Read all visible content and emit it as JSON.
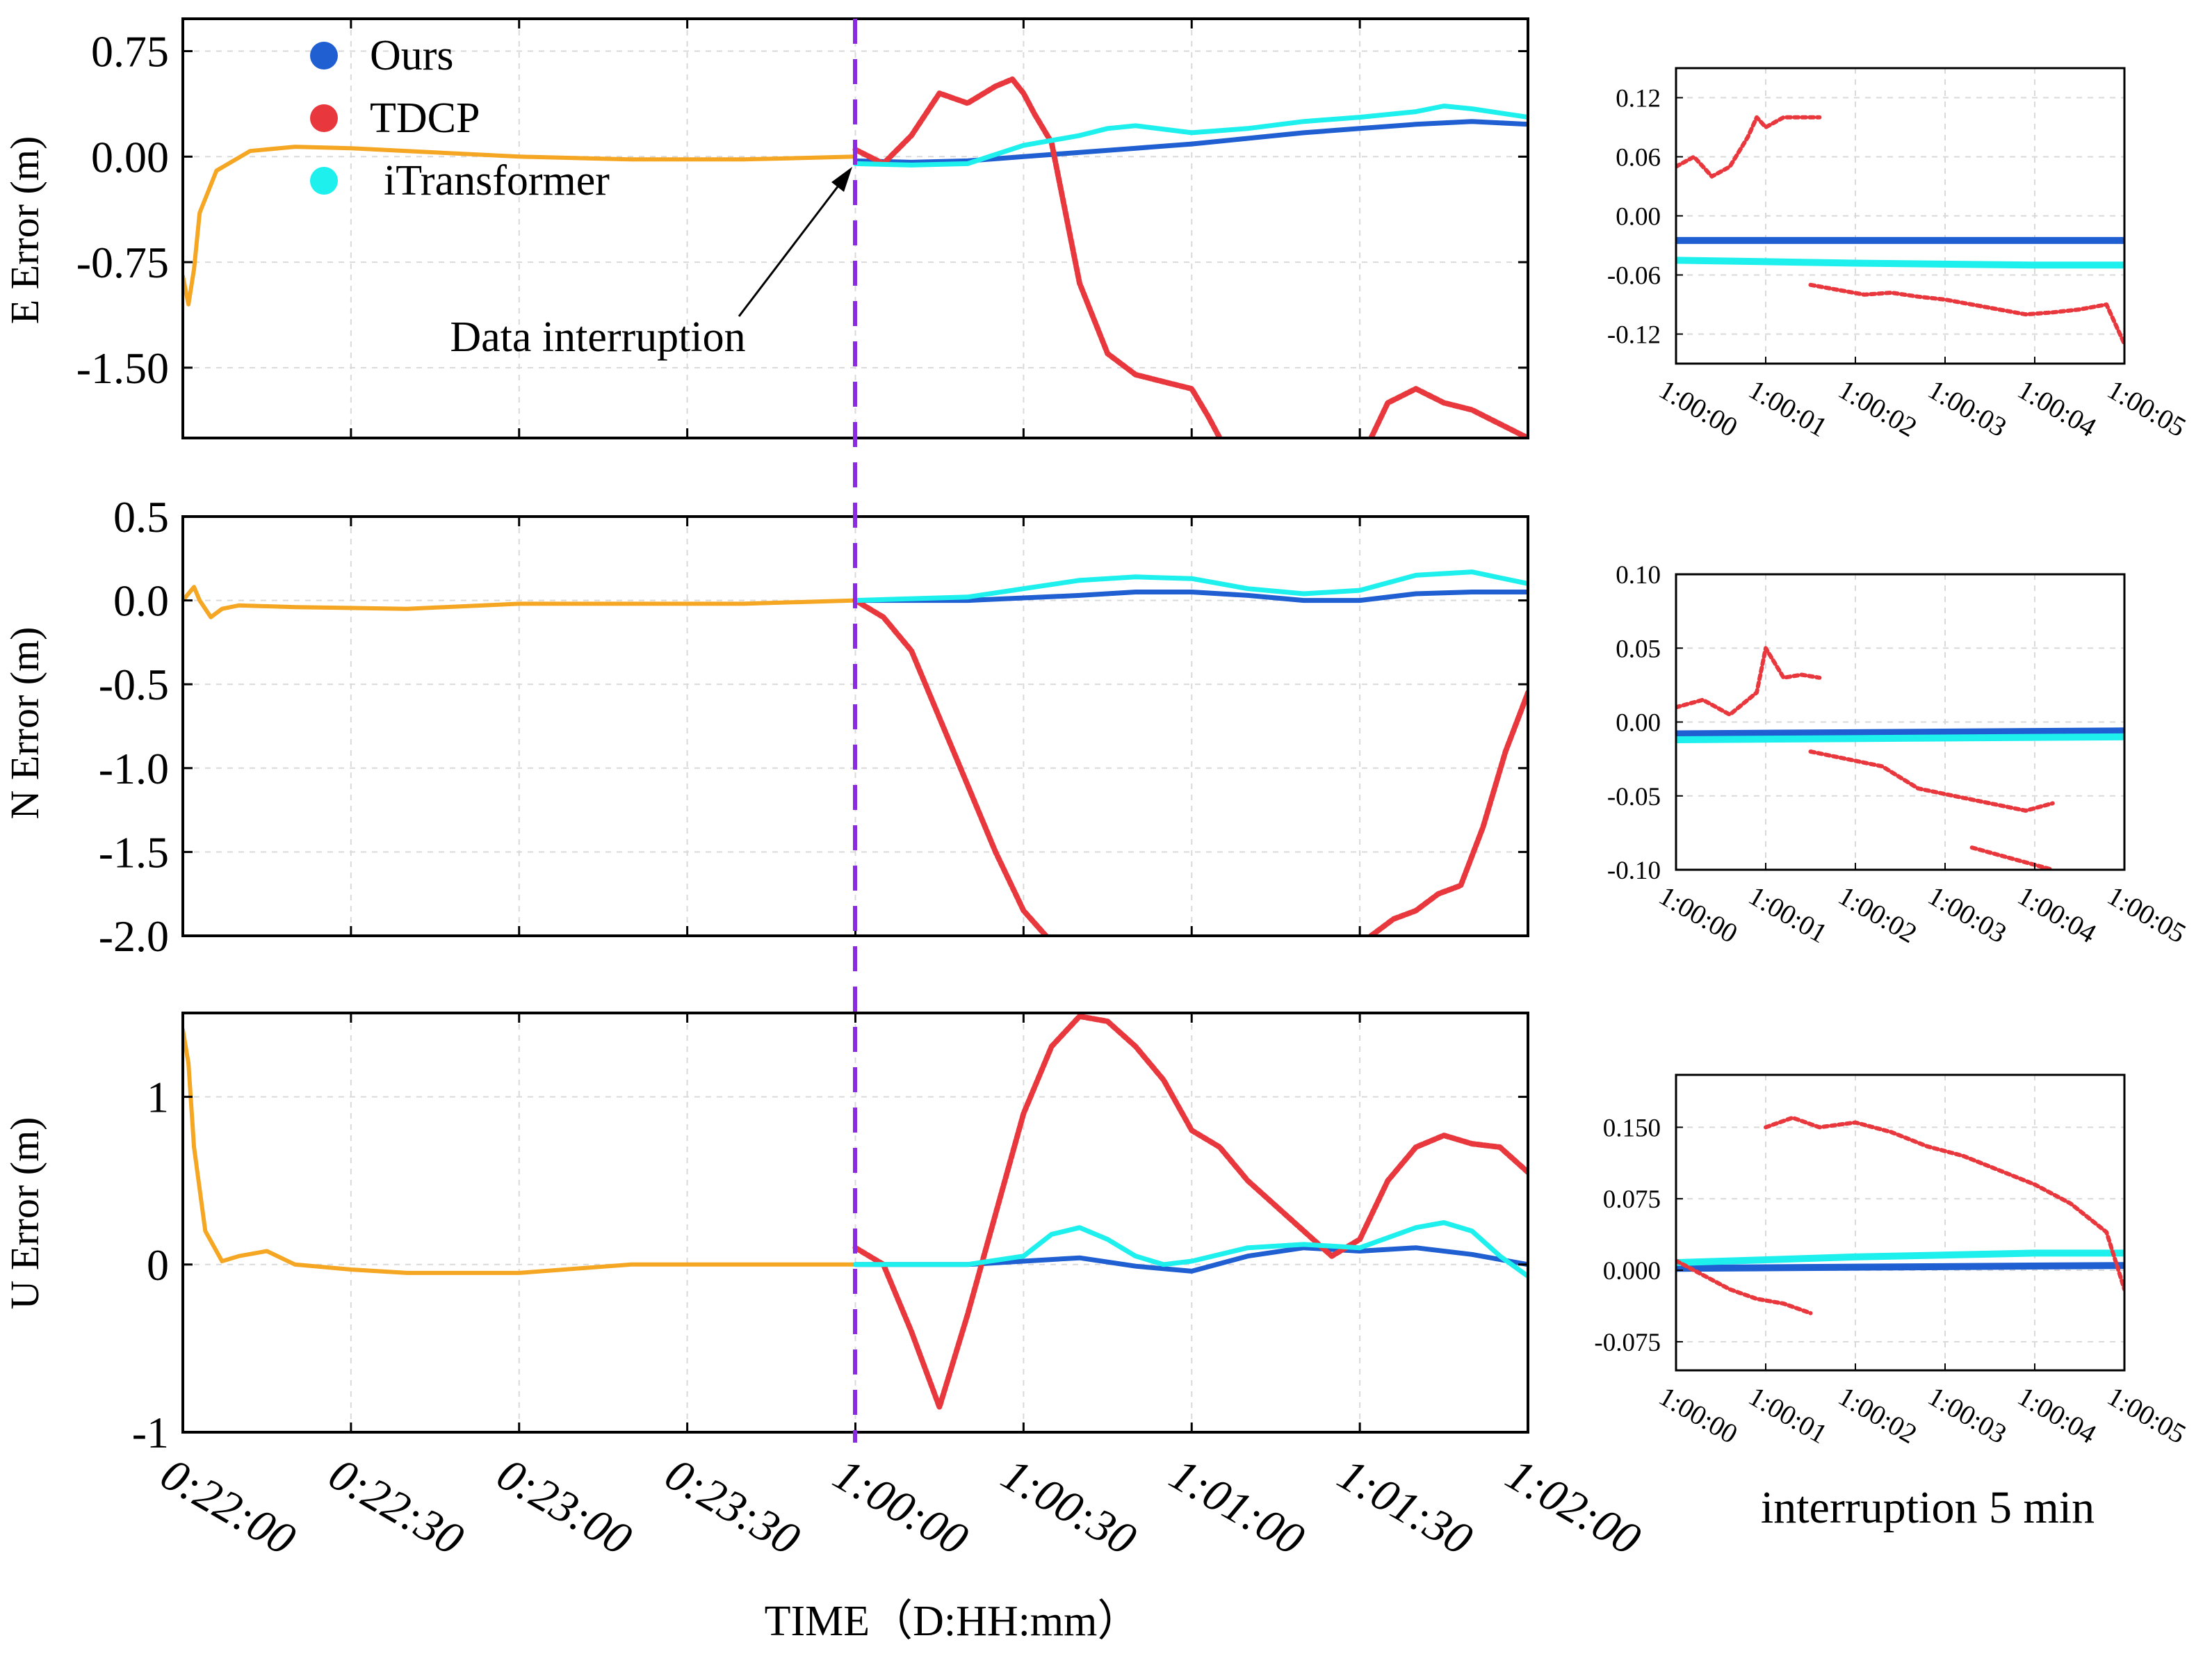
{
  "figure": {
    "xlabel": "TIME（D:HH:mm）",
    "x_ticks": [
      "0:22:00",
      "0:22:30",
      "0:23:00",
      "0:23:30",
      "1:00:00",
      "1:00:30",
      "1:01:00",
      "1:01:30",
      "1:02:00"
    ],
    "interruption_label": "interruption 5 min",
    "annotation": "Data interruption",
    "legend": [
      "Ours",
      "TDCP",
      "iTransformer"
    ],
    "colors": {
      "pre": "#F5A623",
      "Ours": "#1f5fd1",
      "TDCP": "#e8383d",
      "iTransformer": "#1ef0ee",
      "interruption_line": "#8a2be2"
    }
  },
  "chart_data": [
    {
      "type": "line",
      "panel": "main-E",
      "ylabel": "E Error (m)",
      "y_ticks": [
        "0.75",
        "0.00",
        "-0.75",
        "-1.50"
      ],
      "ylim": [
        -2.0,
        0.98
      ],
      "x_unit": "seconds relative to 1:00:00",
      "x_range": [
        -120,
        120
      ],
      "series": [
        {
          "name": "pre",
          "x": [
            -120,
            -119,
            -118,
            -117,
            -114,
            -108,
            -100,
            -90,
            -80,
            -70,
            -60,
            -40,
            -20,
            0
          ],
          "y": [
            -0.85,
            -1.05,
            -0.8,
            -0.4,
            -0.1,
            0.04,
            0.07,
            0.06,
            0.04,
            0.02,
            0.0,
            -0.02,
            -0.02,
            0.0
          ]
        },
        {
          "name": "Ours",
          "x": [
            0,
            10,
            20,
            30,
            40,
            50,
            60,
            70,
            80,
            90,
            100,
            110,
            120
          ],
          "y": [
            -0.03,
            -0.04,
            -0.03,
            0.0,
            0.03,
            0.06,
            0.09,
            0.13,
            0.17,
            0.2,
            0.23,
            0.25,
            0.23
          ]
        },
        {
          "name": "TDCP",
          "x": [
            0,
            5,
            10,
            15,
            20,
            25,
            28,
            30,
            32,
            35,
            40,
            45,
            50,
            55,
            60,
            63,
            65
          ],
          "y": [
            0.05,
            -0.05,
            0.15,
            0.45,
            0.38,
            0.5,
            0.55,
            0.45,
            0.3,
            0.1,
            -0.9,
            -1.4,
            -1.55,
            -1.6,
            -1.65,
            -1.85,
            -2.0
          ]
        },
        {
          "name": "TDCP",
          "x": [
            92,
            95,
            100,
            105,
            110,
            115,
            120
          ],
          "y": [
            -2.0,
            -1.75,
            -1.65,
            -1.75,
            -1.8,
            -1.9,
            -2.0
          ]
        },
        {
          "name": "iTransformer",
          "x": [
            0,
            10,
            20,
            30,
            40,
            45,
            50,
            60,
            70,
            80,
            90,
            100,
            105,
            110,
            120
          ],
          "y": [
            -0.05,
            -0.06,
            -0.05,
            0.08,
            0.15,
            0.2,
            0.22,
            0.17,
            0.2,
            0.25,
            0.28,
            0.32,
            0.36,
            0.34,
            0.28
          ]
        }
      ]
    },
    {
      "type": "line",
      "panel": "main-N",
      "ylabel": "N Error (m)",
      "y_ticks": [
        "0.5",
        "0.0",
        "-0.5",
        "-1.0",
        "-1.5",
        "-2.0"
      ],
      "ylim": [
        -2.0,
        0.5
      ],
      "x_unit": "seconds relative to 1:00:00",
      "x_range": [
        -120,
        120
      ],
      "series": [
        {
          "name": "pre",
          "x": [
            -120,
            -118,
            -117,
            -115,
            -113,
            -110,
            -100,
            -80,
            -60,
            -40,
            -20,
            0
          ],
          "y": [
            0.0,
            0.08,
            0.0,
            -0.1,
            -0.05,
            -0.03,
            -0.04,
            -0.05,
            -0.02,
            -0.02,
            -0.02,
            0.0
          ]
        },
        {
          "name": "Ours",
          "x": [
            0,
            20,
            40,
            50,
            60,
            70,
            80,
            90,
            100,
            110,
            120
          ],
          "y": [
            0.0,
            0.0,
            0.03,
            0.05,
            0.05,
            0.03,
            0.0,
            0.0,
            0.04,
            0.05,
            0.05
          ]
        },
        {
          "name": "TDCP",
          "x": [
            0,
            5,
            10,
            15,
            20,
            25,
            30,
            34
          ],
          "y": [
            0.0,
            -0.1,
            -0.3,
            -0.7,
            -1.1,
            -1.5,
            -1.85,
            -2.0
          ]
        },
        {
          "name": "TDCP",
          "x": [
            92,
            96,
            100,
            104,
            108,
            112,
            116,
            120
          ],
          "y": [
            -2.0,
            -1.9,
            -1.85,
            -1.75,
            -1.7,
            -1.35,
            -0.9,
            -0.55
          ]
        },
        {
          "name": "iTransformer",
          "x": [
            0,
            20,
            30,
            40,
            50,
            60,
            70,
            80,
            90,
            100,
            110,
            120
          ],
          "y": [
            0.0,
            0.02,
            0.07,
            0.12,
            0.14,
            0.13,
            0.07,
            0.04,
            0.06,
            0.15,
            0.17,
            0.1
          ]
        }
      ]
    },
    {
      "type": "line",
      "panel": "main-U",
      "ylabel": "U Error (m)",
      "y_ticks": [
        "1",
        "0",
        "-1"
      ],
      "ylim": [
        -1.0,
        1.5
      ],
      "x_unit": "seconds relative to 1:00:00",
      "x_range": [
        -120,
        120
      ],
      "series": [
        {
          "name": "pre",
          "x": [
            -120,
            -119,
            -118,
            -116,
            -113,
            -110,
            -105,
            -100,
            -90,
            -80,
            -60,
            -40,
            -20,
            0
          ],
          "y": [
            1.4,
            1.2,
            0.7,
            0.2,
            0.02,
            0.05,
            0.08,
            0.0,
            -0.03,
            -0.05,
            -0.05,
            0.0,
            0.0,
            0.0
          ]
        },
        {
          "name": "Ours",
          "x": [
            0,
            20,
            30,
            40,
            50,
            60,
            70,
            80,
            90,
            100,
            110,
            120
          ],
          "y": [
            0.0,
            0.0,
            0.02,
            0.04,
            -0.01,
            -0.04,
            0.05,
            0.1,
            0.08,
            0.1,
            0.06,
            0.0
          ]
        },
        {
          "name": "TDCP",
          "x": [
            0,
            5,
            10,
            15,
            20,
            25,
            30,
            35,
            40,
            45,
            50,
            55,
            60,
            65,
            70,
            75,
            80,
            85,
            90,
            95,
            100,
            105,
            110,
            115,
            120
          ],
          "y": [
            0.1,
            0.0,
            -0.4,
            -0.85,
            -0.3,
            0.3,
            0.9,
            1.3,
            1.48,
            1.45,
            1.3,
            1.1,
            0.8,
            0.7,
            0.5,
            0.35,
            0.2,
            0.05,
            0.15,
            0.5,
            0.7,
            0.77,
            0.72,
            0.7,
            0.55
          ]
        },
        {
          "name": "iTransformer",
          "x": [
            0,
            20,
            30,
            35,
            40,
            45,
            50,
            55,
            60,
            70,
            80,
            90,
            100,
            105,
            110,
            115,
            120
          ],
          "y": [
            0.0,
            0.0,
            0.05,
            0.18,
            0.22,
            0.15,
            0.05,
            0.0,
            0.02,
            0.1,
            0.12,
            0.1,
            0.22,
            0.25,
            0.2,
            0.05,
            -0.07
          ]
        }
      ]
    },
    {
      "type": "scatter",
      "panel": "zoom-E",
      "y_ticks": [
        "0.12",
        "0.06",
        "0.00",
        "-0.06",
        "-0.12"
      ],
      "ylim": [
        -0.15,
        0.15
      ],
      "x_ticks": [
        "1:00:00",
        "1:00:01",
        "1:00:02",
        "1:00:03",
        "1:00:04",
        "1:00:05"
      ],
      "x_unit": "seconds after 1:00:00",
      "x_range": [
        0,
        5
      ],
      "series": [
        {
          "name": "Ours",
          "x": [
            0,
            5
          ],
          "y": [
            -0.025,
            -0.025
          ]
        },
        {
          "name": "iTransformer",
          "x": [
            0,
            2,
            4,
            5
          ],
          "y": [
            -0.045,
            -0.048,
            -0.05,
            -0.05
          ]
        },
        {
          "name": "TDCP",
          "x": [
            0,
            0.2,
            0.4,
            0.6,
            0.8,
            0.9,
            1.0,
            1.2,
            1.4,
            1.6
          ],
          "y": [
            0.05,
            0.06,
            0.04,
            0.05,
            0.08,
            0.1,
            0.09,
            0.1,
            0.1,
            0.1
          ]
        },
        {
          "name": "TDCP",
          "x": [
            1.5,
            1.8,
            2.1,
            2.4,
            2.7,
            3.0,
            3.3,
            3.6,
            3.9,
            4.2,
            4.5,
            4.8,
            5.0
          ],
          "y": [
            -0.07,
            -0.075,
            -0.08,
            -0.078,
            -0.082,
            -0.085,
            -0.09,
            -0.095,
            -0.1,
            -0.098,
            -0.095,
            -0.09,
            -0.13
          ]
        }
      ]
    },
    {
      "type": "scatter",
      "panel": "zoom-N",
      "y_ticks": [
        "0.10",
        "0.05",
        "0.00",
        "-0.05",
        "-0.10"
      ],
      "ylim": [
        -0.1,
        0.1
      ],
      "x_ticks": [
        "1:00:00",
        "1:00:01",
        "1:00:02",
        "1:00:03",
        "1:00:04",
        "1:00:05"
      ],
      "x_unit": "seconds after 1:00:00",
      "x_range": [
        0,
        5
      ],
      "series": [
        {
          "name": "Ours",
          "x": [
            0,
            5
          ],
          "y": [
            -0.008,
            -0.006
          ]
        },
        {
          "name": "iTransformer",
          "x": [
            0,
            2.5,
            5
          ],
          "y": [
            -0.012,
            -0.011,
            -0.01
          ]
        },
        {
          "name": "TDCP",
          "x": [
            0,
            0.3,
            0.6,
            0.9,
            1.0,
            1.2,
            1.4,
            1.6
          ],
          "y": [
            0.01,
            0.015,
            0.005,
            0.02,
            0.05,
            0.03,
            0.032,
            0.03
          ]
        },
        {
          "name": "TDCP",
          "x": [
            1.5,
            1.9,
            2.3,
            2.7,
            3.1,
            3.5,
            3.9,
            4.2
          ],
          "y": [
            -0.02,
            -0.025,
            -0.03,
            -0.045,
            -0.05,
            -0.055,
            -0.06,
            -0.055
          ]
        },
        {
          "name": "TDCP",
          "x": [
            3.3,
            3.6,
            3.9,
            4.2
          ],
          "y": [
            -0.085,
            -0.09,
            -0.095,
            -0.1
          ]
        }
      ]
    },
    {
      "type": "scatter",
      "panel": "zoom-U",
      "y_ticks": [
        "0.150",
        "0.075",
        "0.000",
        "-0.075"
      ],
      "ylim": [
        -0.105,
        0.205
      ],
      "x_ticks": [
        "1:00:00",
        "1:00:01",
        "1:00:02",
        "1:00:03",
        "1:00:04",
        "1:00:05"
      ],
      "x_unit": "seconds after 1:00:00",
      "x_range": [
        0,
        5
      ],
      "series": [
        {
          "name": "Ours",
          "x": [
            0,
            5
          ],
          "y": [
            0.002,
            0.005
          ]
        },
        {
          "name": "iTransformer",
          "x": [
            0,
            2,
            4,
            5
          ],
          "y": [
            0.008,
            0.014,
            0.018,
            0.018
          ]
        },
        {
          "name": "TDCP",
          "x": [
            0,
            0.3,
            0.6,
            0.9,
            1.2,
            1.5
          ],
          "y": [
            0.01,
            -0.005,
            -0.02,
            -0.03,
            -0.035,
            -0.045
          ]
        },
        {
          "name": "TDCP",
          "x": [
            1.0,
            1.3,
            1.6,
            2.0,
            2.4,
            2.8,
            3.2,
            3.6,
            4.0,
            4.4,
            4.8,
            5.0
          ],
          "y": [
            0.15,
            0.16,
            0.15,
            0.155,
            0.145,
            0.13,
            0.12,
            0.105,
            0.09,
            0.07,
            0.04,
            -0.02
          ]
        }
      ]
    }
  ]
}
